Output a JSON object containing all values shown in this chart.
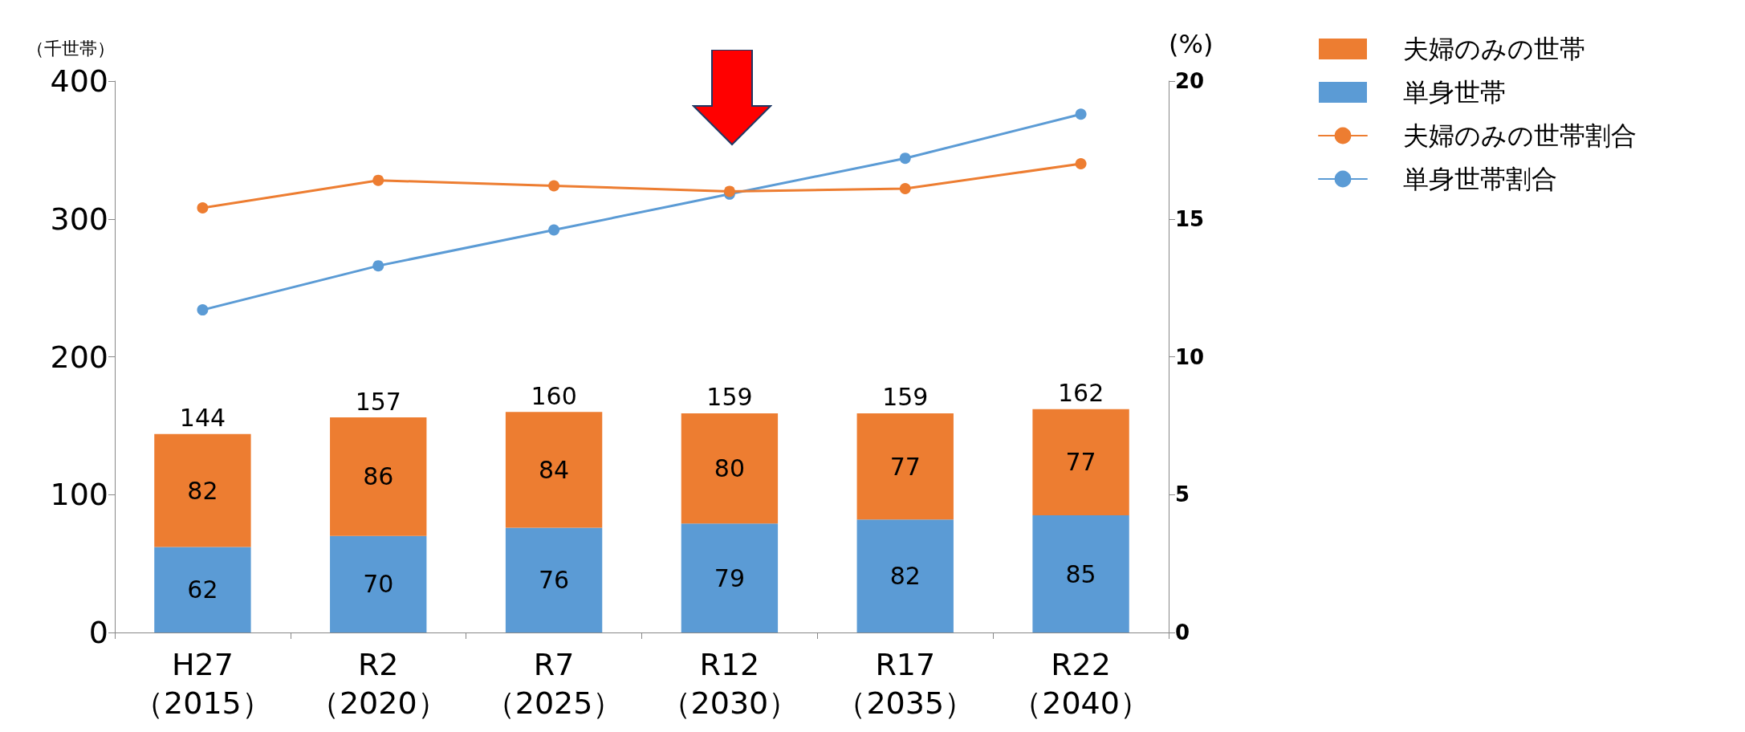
{
  "chart_data": {
    "type": "bar",
    "stacked": true,
    "ylabel": "（千世帯）",
    "y2label": "(%)",
    "categories": [
      "H27\n（2015）",
      "R2\n（2020）",
      "R7\n（2025）",
      "R12\n（2030）",
      "R17\n（2035）",
      "R22\n（2040）"
    ],
    "series": [
      {
        "name": "単身世帯",
        "color": "#5b9bd5",
        "values": [
          62,
          70,
          76,
          79,
          82,
          85
        ],
        "value_labels": [
          "62",
          "70",
          "76",
          "79",
          "82",
          "85"
        ]
      },
      {
        "name": "夫婦のみの世帯",
        "color": "#ed7d31",
        "values": [
          82,
          86,
          84,
          80,
          77,
          77
        ],
        "value_labels": [
          "82",
          "86",
          "84",
          "80",
          "77",
          "77"
        ]
      },
      {
        "name": "夫婦のみの世帯割合",
        "type": "line",
        "axis": "y2",
        "color": "#ed7d31",
        "values": [
          15.4,
          16.4,
          16.2,
          16.0,
          16.1,
          17.0
        ]
      },
      {
        "name": "単身世帯割合",
        "type": "line",
        "axis": "y2",
        "color": "#5b9bd5",
        "values": [
          11.7,
          13.3,
          14.6,
          15.9,
          17.2,
          18.8
        ]
      }
    ],
    "totals": [
      "144",
      "157",
      "160",
      "159",
      "159",
      "162"
    ],
    "ylim": [
      0,
      400
    ],
    "yticks": [
      0,
      100,
      200,
      300,
      400
    ],
    "y2lim": [
      0,
      20
    ],
    "y2ticks": [
      0,
      5,
      10,
      15,
      20
    ],
    "grid": false,
    "legend": "top right",
    "marker": "circle",
    "line_style": "solid"
  }
}
